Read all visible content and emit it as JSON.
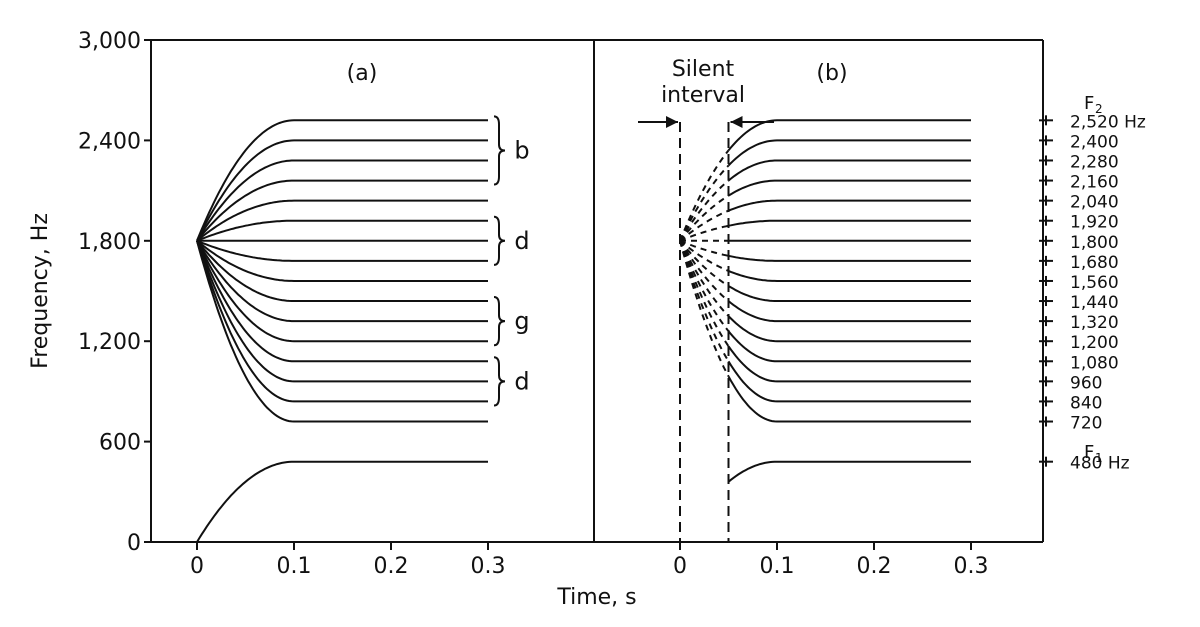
{
  "chart_data": {
    "type": "line",
    "ylabel": "Frequency, Hz",
    "xlabel": "Time, s",
    "ylim": [
      0,
      3000
    ],
    "grid": false,
    "y_ticks": [
      {
        "value": 0,
        "label": "0"
      },
      {
        "value": 600,
        "label": "600"
      },
      {
        "value": 1200,
        "label": "1,200"
      },
      {
        "value": 1800,
        "label": "1,800"
      },
      {
        "value": 2400,
        "label": "2,400"
      },
      {
        "value": 3000,
        "label": "3,000"
      }
    ],
    "panels": [
      {
        "label": "(a)",
        "x_ticks": [
          {
            "value": 0,
            "label": "0"
          },
          {
            "value": 0.1,
            "label": "0.1"
          },
          {
            "value": 0.2,
            "label": "0.2"
          },
          {
            "value": 0.3,
            "label": "0.3"
          }
        ],
        "transition_start": 0.0,
        "transition_duration": 0.1,
        "steady_end": 0.3,
        "f2_start": 1800,
        "f1_start": 0,
        "f2_targets": [
          2520,
          2400,
          2280,
          2160,
          2040,
          1920,
          1800,
          1680,
          1560,
          1440,
          1320,
          1200,
          1080,
          960,
          840,
          720
        ],
        "f1_target": 480,
        "brackets": [
          {
            "label": "b",
            "from": 2520,
            "to": 2160
          },
          {
            "label": "d",
            "from": 1920,
            "to": 1680
          },
          {
            "label": "g",
            "from": 1440,
            "to": 1200
          },
          {
            "label": "d",
            "from": 1080,
            "to": 840
          }
        ]
      },
      {
        "label": "(b)",
        "x_ticks": [
          {
            "value": 0,
            "label": "0"
          },
          {
            "value": 0.1,
            "label": "0.1"
          },
          {
            "value": 0.2,
            "label": "0.2"
          },
          {
            "value": 0.3,
            "label": "0.3"
          }
        ],
        "silent_interval_label": "Silent\ninterval",
        "silent_interval": [
          0.0,
          0.05
        ],
        "transition_start": 0.0,
        "transition_duration": 0.1,
        "steady_end": 0.3,
        "f2_start": 1800,
        "f1_start": 0,
        "f2_targets": [
          2520,
          2400,
          2280,
          2160,
          2040,
          1920,
          1800,
          1680,
          1560,
          1440,
          1320,
          1200,
          1080,
          960,
          840,
          720
        ],
        "f1_target": 480
      }
    ],
    "right_axis": {
      "f2_label": "F",
      "f2_sub": "2",
      "f1_label": "F",
      "f1_sub": "1",
      "labels": [
        {
          "value": 2520,
          "label": "2,520 Hz"
        },
        {
          "value": 2400,
          "label": "2,400"
        },
        {
          "value": 2280,
          "label": "2,280"
        },
        {
          "value": 2160,
          "label": "2,160"
        },
        {
          "value": 2040,
          "label": "2,040"
        },
        {
          "value": 1920,
          "label": "1,920"
        },
        {
          "value": 1800,
          "label": "1,800"
        },
        {
          "value": 1680,
          "label": "1,680"
        },
        {
          "value": 1560,
          "label": "1,560"
        },
        {
          "value": 1440,
          "label": "1,440"
        },
        {
          "value": 1320,
          "label": "1,320"
        },
        {
          "value": 1200,
          "label": "1,200"
        },
        {
          "value": 1080,
          "label": "1,080"
        },
        {
          "value": 960,
          "label": "960"
        },
        {
          "value": 840,
          "label": "840"
        },
        {
          "value": 720,
          "label": "720"
        },
        {
          "value": 480,
          "label": "480 Hz"
        }
      ]
    }
  }
}
